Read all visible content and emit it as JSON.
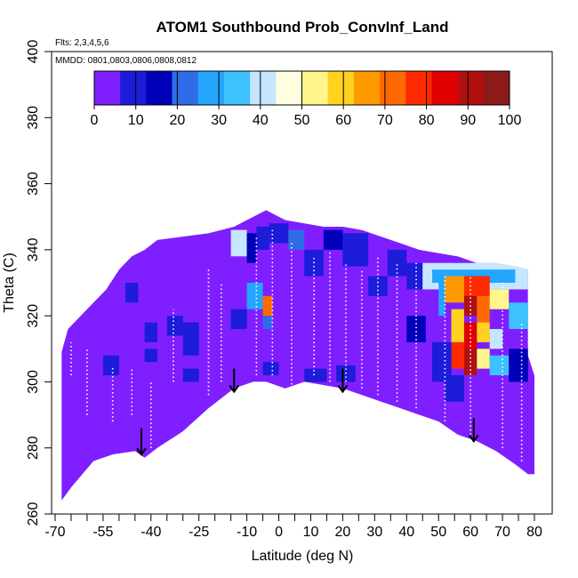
{
  "chart_data": {
    "type": "heatmap",
    "title": "ATOM1 Southbound Prob_ConvInf_Land",
    "annotations": {
      "flights": "Flts: 2,3,4,5,6",
      "dates": "MMDD: 0801,0803,0806,0808,0812"
    },
    "xlabel": "Latitude (deg N)",
    "ylabel": "Theta (C)",
    "xlim": [
      -70,
      80
    ],
    "ylim": [
      260,
      400
    ],
    "x_tick_labels": [
      "-70",
      "-55",
      "-40",
      "-25",
      "-10",
      "0",
      "10",
      "20",
      "30",
      "40",
      "50",
      "60",
      "70",
      "80"
    ],
    "x_ticks": [
      -70,
      -55,
      -40,
      -25,
      -10,
      0,
      10,
      20,
      30,
      40,
      50,
      60,
      70,
      80
    ],
    "x_minor_ticks": [
      -65,
      -60,
      -50,
      -45,
      -35,
      -30,
      -20,
      -15,
      -5,
      5,
      15,
      25,
      35,
      45,
      55,
      65,
      75
    ],
    "y_ticks": [
      260,
      280,
      300,
      320,
      340,
      360,
      380,
      400
    ],
    "colorbar": {
      "min": 0,
      "max": 100,
      "ticks": [
        0,
        10,
        20,
        30,
        40,
        50,
        60,
        70,
        80,
        90,
        100
      ],
      "colors": [
        "#7F1FFF",
        "#1C1CD9",
        "#0000B8",
        "#2F6DE8",
        "#24A6FF",
        "#3DC1FF",
        "#C6E6FF",
        "#FFFFE0",
        "#FFF58A",
        "#FFD21F",
        "#FF9900",
        "#FF6A00",
        "#FF2A00",
        "#E00000",
        "#B01010",
        "#8C1A1A"
      ]
    },
    "field": {
      "background_value": 3,
      "top_boundary": [
        [
          -68,
          309
        ],
        [
          -66,
          316
        ],
        [
          -62,
          320
        ],
        [
          -58,
          324
        ],
        [
          -54,
          328
        ],
        [
          -50,
          334
        ],
        [
          -46,
          338
        ],
        [
          -42,
          340
        ],
        [
          -38,
          343
        ],
        [
          -30,
          344
        ],
        [
          -22,
          345
        ],
        [
          -14,
          347
        ],
        [
          -8,
          350
        ],
        [
          -4,
          352
        ],
        [
          2,
          349
        ],
        [
          8,
          348
        ],
        [
          14,
          347
        ],
        [
          20,
          347
        ],
        [
          26,
          346
        ],
        [
          32,
          344
        ],
        [
          38,
          342
        ],
        [
          44,
          340
        ],
        [
          50,
          339
        ],
        [
          56,
          338
        ],
        [
          62,
          336
        ],
        [
          68,
          336
        ],
        [
          74,
          335
        ],
        [
          78,
          334
        ],
        [
          78,
          308
        ],
        [
          80,
          302
        ],
        [
          80,
          272
        ]
      ],
      "bottom_boundary": [
        [
          -68,
          264
        ],
        [
          -65,
          268
        ],
        [
          -58,
          276
        ],
        [
          -52,
          278
        ],
        [
          -45,
          279
        ],
        [
          -42,
          277
        ],
        [
          -38,
          280
        ],
        [
          -30,
          285
        ],
        [
          -22,
          292
        ],
        [
          -14,
          298
        ],
        [
          -8,
          300
        ],
        [
          -4,
          300
        ],
        [
          2,
          298
        ],
        [
          8,
          300
        ],
        [
          14,
          299
        ],
        [
          20,
          298
        ],
        [
          26,
          296
        ],
        [
          32,
          294
        ],
        [
          38,
          292
        ],
        [
          44,
          290
        ],
        [
          50,
          288
        ],
        [
          56,
          284
        ],
        [
          62,
          282
        ],
        [
          68,
          279
        ],
        [
          74,
          275
        ],
        [
          78,
          272
        ]
      ],
      "patches": [
        {
          "x": [
            -15,
            -10
          ],
          "y": [
            338,
            346
          ],
          "value": 40
        },
        {
          "x": [
            -10,
            -7
          ],
          "y": [
            336,
            345
          ],
          "value": 15
        },
        {
          "x": [
            -7,
            -3
          ],
          "y": [
            340,
            347
          ],
          "value": 10
        },
        {
          "x": [
            -3,
            3
          ],
          "y": [
            342,
            348
          ],
          "value": 12
        },
        {
          "x": [
            3,
            8
          ],
          "y": [
            340,
            346
          ],
          "value": 20
        },
        {
          "x": [
            8,
            14
          ],
          "y": [
            332,
            340
          ],
          "value": 10
        },
        {
          "x": [
            14,
            20
          ],
          "y": [
            340,
            346
          ],
          "value": 15
        },
        {
          "x": [
            20,
            28
          ],
          "y": [
            335,
            345
          ],
          "value": 10
        },
        {
          "x": [
            28,
            34
          ],
          "y": [
            326,
            332
          ],
          "value": 10
        },
        {
          "x": [
            34,
            40
          ],
          "y": [
            332,
            340
          ],
          "value": 12
        },
        {
          "x": [
            -10,
            -5
          ],
          "y": [
            322,
            330
          ],
          "value": 30
        },
        {
          "x": [
            -5,
            -2
          ],
          "y": [
            320,
            326
          ],
          "value": 70
        },
        {
          "x": [
            -5,
            -2
          ],
          "y": [
            316,
            320
          ],
          "value": 20
        },
        {
          "x": [
            -15,
            -10
          ],
          "y": [
            316,
            322
          ],
          "value": 10
        },
        {
          "x": [
            -30,
            -25
          ],
          "y": [
            308,
            318
          ],
          "value": 10
        },
        {
          "x": [
            -35,
            -30
          ],
          "y": [
            314,
            320
          ],
          "value": 12
        },
        {
          "x": [
            -42,
            -38
          ],
          "y": [
            312,
            318
          ],
          "value": 10
        },
        {
          "x": [
            -48,
            -44
          ],
          "y": [
            324,
            330
          ],
          "value": 10
        },
        {
          "x": [
            -55,
            -50
          ],
          "y": [
            302,
            308
          ],
          "value": 10
        },
        {
          "x": [
            -42,
            -38
          ],
          "y": [
            306,
            310
          ],
          "value": 12
        },
        {
          "x": [
            -30,
            -25
          ],
          "y": [
            300,
            304
          ],
          "value": 10
        },
        {
          "x": [
            -5,
            0
          ],
          "y": [
            302,
            306
          ],
          "value": 10
        },
        {
          "x": [
            8,
            15
          ],
          "y": [
            300,
            304
          ],
          "value": 10
        },
        {
          "x": [
            18,
            24
          ],
          "y": [
            300,
            305
          ],
          "value": 12
        },
        {
          "x": [
            40,
            46
          ],
          "y": [
            312,
            320
          ],
          "value": 15
        },
        {
          "x": [
            40,
            45
          ],
          "y": [
            328,
            336
          ],
          "value": 12
        },
        {
          "x": [
            45,
            78
          ],
          "y": [
            328,
            336
          ],
          "value": 40
        },
        {
          "x": [
            48,
            74
          ],
          "y": [
            330,
            334
          ],
          "value": 25
        },
        {
          "x": [
            50,
            52
          ],
          "y": [
            320,
            330
          ],
          "value": 30
        },
        {
          "x": [
            52,
            58
          ],
          "y": [
            324,
            332
          ],
          "value": 65
        },
        {
          "x": [
            58,
            66
          ],
          "y": [
            326,
            332
          ],
          "value": 80
        },
        {
          "x": [
            58,
            62
          ],
          "y": [
            320,
            326
          ],
          "value": 90
        },
        {
          "x": [
            62,
            66
          ],
          "y": [
            318,
            326
          ],
          "value": 70
        },
        {
          "x": [
            66,
            72
          ],
          "y": [
            322,
            328
          ],
          "value": 50
        },
        {
          "x": [
            72,
            78
          ],
          "y": [
            316,
            324
          ],
          "value": 35
        },
        {
          "x": [
            54,
            58
          ],
          "y": [
            312,
            322
          ],
          "value": 60
        },
        {
          "x": [
            58,
            62
          ],
          "y": [
            310,
            318
          ],
          "value": 85
        },
        {
          "x": [
            62,
            66
          ],
          "y": [
            312,
            318
          ],
          "value": 60
        },
        {
          "x": [
            66,
            70
          ],
          "y": [
            310,
            316
          ],
          "value": 40
        },
        {
          "x": [
            54,
            58
          ],
          "y": [
            304,
            312
          ],
          "value": 75
        },
        {
          "x": [
            58,
            62
          ],
          "y": [
            302,
            310
          ],
          "value": 90
        },
        {
          "x": [
            62,
            66
          ],
          "y": [
            304,
            310
          ],
          "value": 55
        },
        {
          "x": [
            66,
            72
          ],
          "y": [
            302,
            308
          ],
          "value": 35
        },
        {
          "x": [
            48,
            54
          ],
          "y": [
            300,
            312
          ],
          "value": 12
        },
        {
          "x": [
            72,
            78
          ],
          "y": [
            300,
            310
          ],
          "value": 15
        },
        {
          "x": [
            52,
            58
          ],
          "y": [
            294,
            302
          ],
          "value": 12
        }
      ]
    },
    "arrows": [
      {
        "x": -43,
        "theta_top": 286,
        "theta_tip": 278
      },
      {
        "x": -14,
        "theta_top": 304,
        "theta_tip": 297
      },
      {
        "x": 20,
        "theta_top": 304,
        "theta_tip": 297
      },
      {
        "x": 61,
        "theta_top": 289,
        "theta_tip": 282
      }
    ],
    "flight_tracks": [
      {
        "x": -65,
        "theta": [
          302,
          312
        ]
      },
      {
        "x": -60,
        "theta": [
          290,
          310
        ]
      },
      {
        "x": -52,
        "theta": [
          288,
          305
        ]
      },
      {
        "x": -46,
        "theta": [
          290,
          304
        ]
      },
      {
        "x": -40,
        "theta": [
          280,
          300
        ]
      },
      {
        "x": -33,
        "theta": [
          300,
          322
        ]
      },
      {
        "x": -22,
        "theta": [
          296,
          334
        ]
      },
      {
        "x": -18,
        "theta": [
          300,
          330
        ]
      },
      {
        "x": -7,
        "theta": [
          302,
          344
        ]
      },
      {
        "x": -2,
        "theta": [
          302,
          346
        ]
      },
      {
        "x": 4,
        "theta": [
          298,
          342
        ]
      },
      {
        "x": 11,
        "theta": [
          302,
          338
        ]
      },
      {
        "x": 16,
        "theta": [
          300,
          340
        ]
      },
      {
        "x": 21,
        "theta": [
          300,
          336
        ]
      },
      {
        "x": 26,
        "theta": [
          298,
          334
        ]
      },
      {
        "x": 31,
        "theta": [
          296,
          338
        ]
      },
      {
        "x": 37,
        "theta": [
          294,
          336
        ]
      },
      {
        "x": 43,
        "theta": [
          292,
          336
        ]
      },
      {
        "x": 52,
        "theta": [
          288,
          332
        ]
      },
      {
        "x": 60,
        "theta": [
          284,
          332
        ]
      },
      {
        "x": 70,
        "theta": [
          280,
          330
        ]
      },
      {
        "x": 76,
        "theta": [
          276,
          318
        ]
      }
    ]
  }
}
